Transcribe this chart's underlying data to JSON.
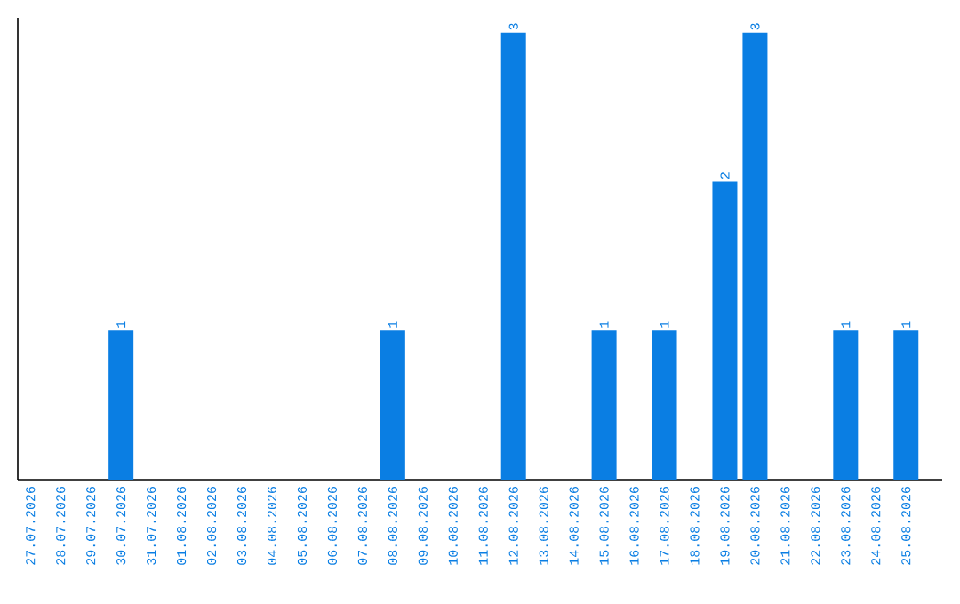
{
  "chart_data": {
    "type": "bar",
    "categories": [
      "27.07.2026",
      "28.07.2026",
      "29.07.2026",
      "30.07.2026",
      "31.07.2026",
      "01.08.2026",
      "02.08.2026",
      "03.08.2026",
      "04.08.2026",
      "05.08.2026",
      "06.08.2026",
      "07.08.2026",
      "08.08.2026",
      "09.08.2026",
      "10.08.2026",
      "11.08.2026",
      "12.08.2026",
      "13.08.2026",
      "14.08.2026",
      "15.08.2026",
      "16.08.2026",
      "17.08.2026",
      "18.08.2026",
      "19.08.2026",
      "20.08.2026",
      "21.08.2026",
      "22.08.2026",
      "23.08.2026",
      "24.08.2026",
      "25.08.2026"
    ],
    "values": [
      0,
      0,
      0,
      1,
      0,
      0,
      0,
      0,
      0,
      0,
      0,
      0,
      1,
      0,
      0,
      0,
      3,
      0,
      0,
      1,
      0,
      1,
      0,
      2,
      3,
      0,
      0,
      1,
      0,
      1
    ],
    "value_labels": [
      null,
      null,
      null,
      "1",
      null,
      null,
      null,
      null,
      null,
      null,
      null,
      null,
      "1",
      null,
      null,
      null,
      "3",
      null,
      null,
      "1",
      null,
      "1",
      null,
      "2",
      "3",
      null,
      null,
      "1",
      null,
      "1"
    ],
    "color": "#0a7ee3",
    "ylim": [
      0,
      3.1
    ],
    "tick_labels": "x",
    "grid": false
  }
}
